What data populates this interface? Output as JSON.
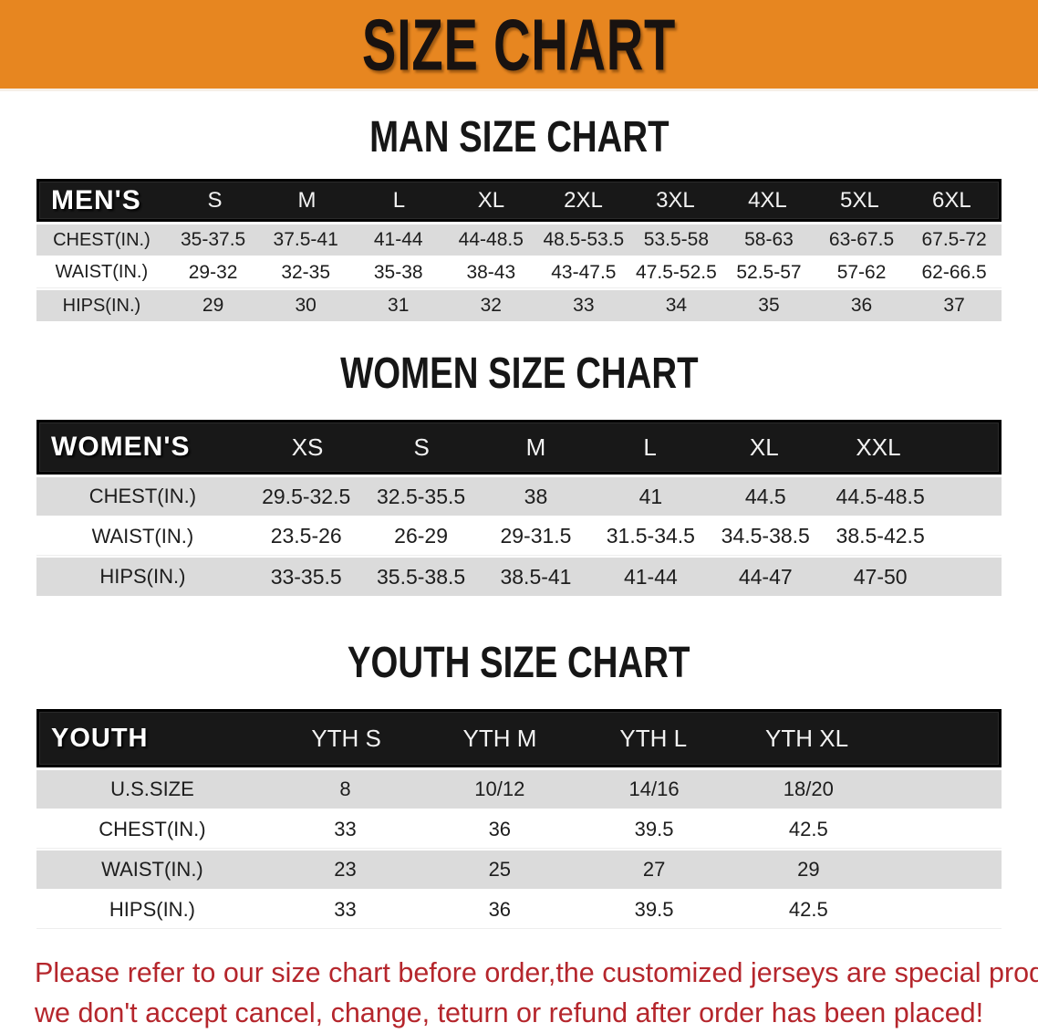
{
  "banner": {
    "title": "SIZE CHART"
  },
  "colors": {
    "banner_bg": "#E78620",
    "table_header_bg": "#181818",
    "row_gray": "#DBDBDB",
    "warning_red": "#B5262C"
  },
  "sections": [
    {
      "name": "man-size-chart",
      "title": "MAN SIZE CHART",
      "header_label": "MEN'S",
      "columns": [
        "S",
        "M",
        "L",
        "XL",
        "2XL",
        "3XL",
        "4XL",
        "5XL",
        "6XL"
      ],
      "rows": [
        {
          "label": "CHEST(IN.)",
          "values": [
            "35-37.5",
            "37.5-41",
            "41-44",
            "44-48.5",
            "48.5-53.5",
            "53.5-58",
            "58-63",
            "63-67.5",
            "67.5-72"
          ]
        },
        {
          "label": "WAIST(IN.)",
          "values": [
            "29-32",
            "32-35",
            "35-38",
            "38-43",
            "43-47.5",
            "47.5-52.5",
            "52.5-57",
            "57-62",
            "62-66.5"
          ]
        },
        {
          "label": "HIPS(IN.)",
          "values": [
            "29",
            "30",
            "31",
            "32",
            "33",
            "34",
            "35",
            "36",
            "37"
          ]
        }
      ]
    },
    {
      "name": "women-size-chart",
      "title": "WOMEN SIZE CHART",
      "header_label": "WOMEN'S",
      "columns": [
        "XS",
        "S",
        "M",
        "L",
        "XL",
        "XXL"
      ],
      "rows": [
        {
          "label": "CHEST(IN.)",
          "values": [
            "29.5-32.5",
            "32.5-35.5",
            "38",
            "41",
            "44.5",
            "44.5-48.5"
          ]
        },
        {
          "label": "WAIST(IN.)",
          "values": [
            "23.5-26",
            "26-29",
            "29-31.5",
            "31.5-34.5",
            "34.5-38.5",
            "38.5-42.5"
          ]
        },
        {
          "label": "HIPS(IN.)",
          "values": [
            "33-35.5",
            "35.5-38.5",
            "38.5-41",
            "41-44",
            "44-47",
            "47-50"
          ]
        }
      ]
    },
    {
      "name": "youth-size-chart",
      "title": "YOUTH SIZE CHART",
      "header_label": "YOUTH",
      "columns": [
        "YTH S",
        "YTH M",
        "YTH L",
        "YTH XL"
      ],
      "rows": [
        {
          "label": "U.S.SIZE",
          "values": [
            "8",
            "10/12",
            "14/16",
            "18/20"
          ]
        },
        {
          "label": "CHEST(IN.)",
          "values": [
            "33",
            "36",
            "39.5",
            "42.5"
          ]
        },
        {
          "label": "WAIST(IN.)",
          "values": [
            "23",
            "25",
            "27",
            "29"
          ]
        },
        {
          "label": "HIPS(IN.)",
          "values": [
            "33",
            "36",
            "39.5",
            "42.5"
          ]
        }
      ]
    }
  ],
  "footer": {
    "line1": "Please refer to our size chart before order,the customized jerseys are special products,",
    "line2": "we don't accept cancel, change, teturn or refund after order has been placed!"
  }
}
